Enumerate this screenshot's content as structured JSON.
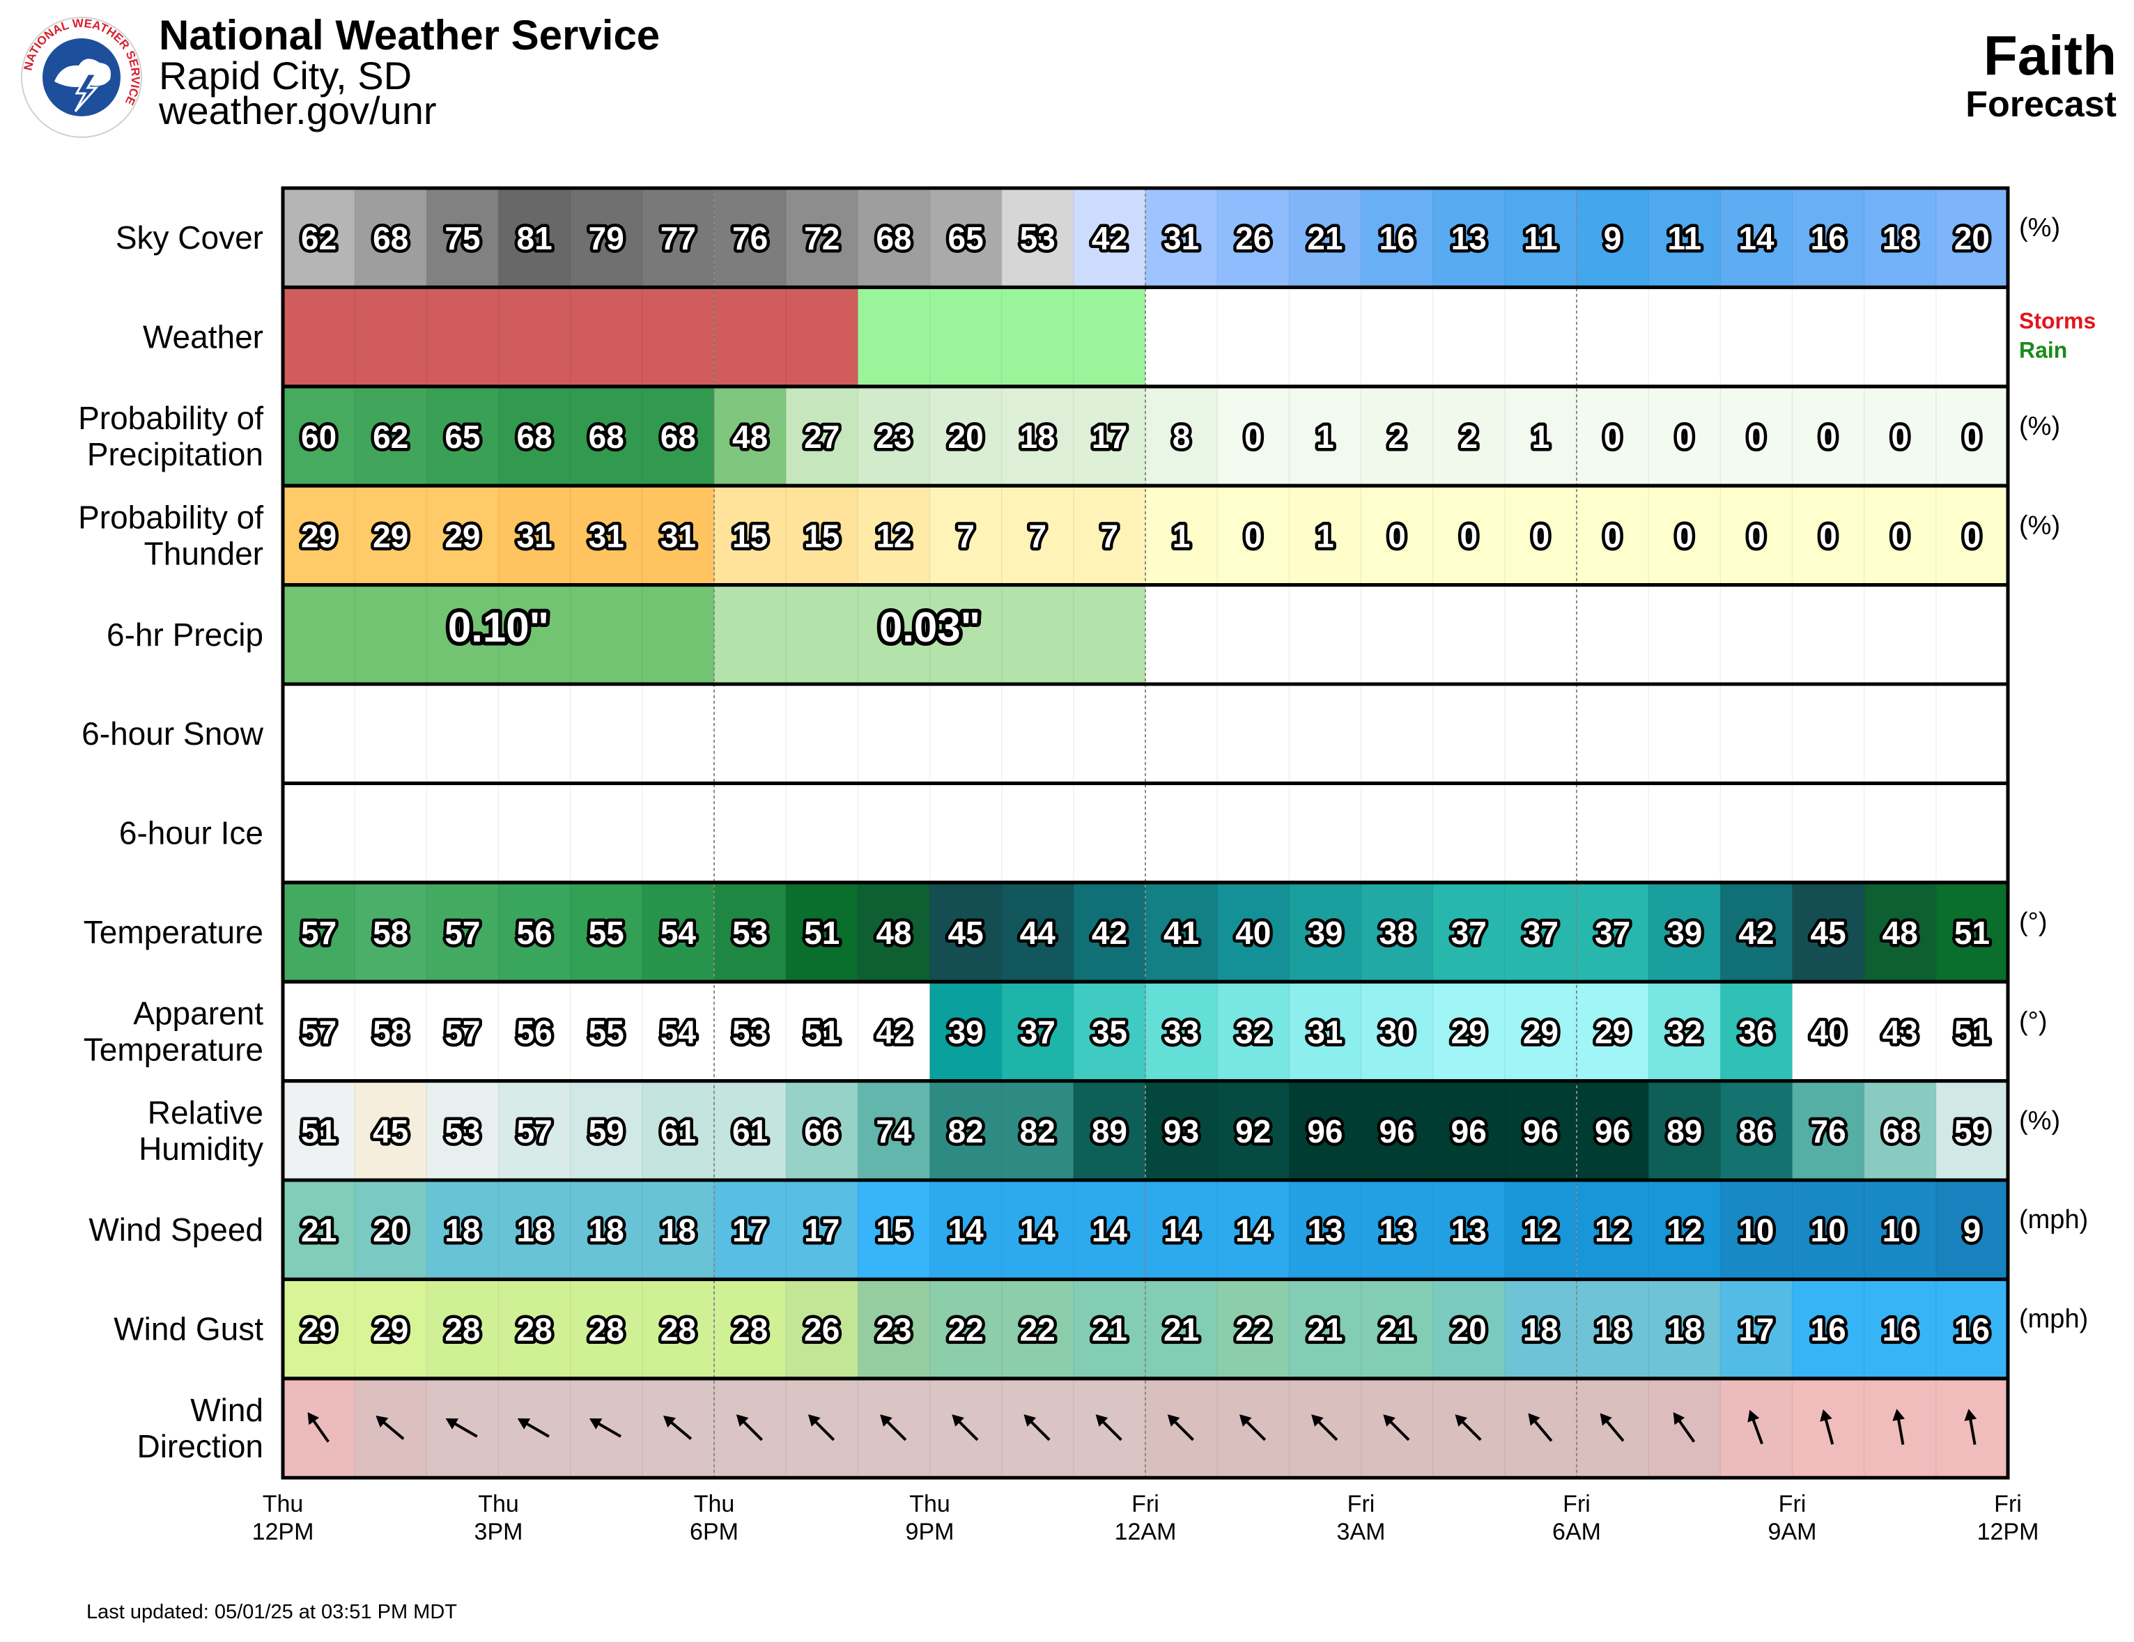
{
  "header": {
    "agency": "National Weather Service",
    "office": "Rapid City, SD",
    "url": "weather.gov/unr",
    "logo_text": "NATIONAL WEATHER SERVICE",
    "location": "Faith",
    "subtitle": "Forecast"
  },
  "footer": {
    "updated": "Last updated: 05/01/25 at 03:51 PM MDT"
  },
  "chart_data": {
    "type": "table",
    "x_ticks": [
      [
        "Thu",
        "12PM"
      ],
      [
        "Thu",
        "3PM"
      ],
      [
        "Thu",
        "6PM"
      ],
      [
        "Thu",
        "9PM"
      ],
      [
        "Fri",
        "12AM"
      ],
      [
        "Fri",
        "3AM"
      ],
      [
        "Fri",
        "6AM"
      ],
      [
        "Fri",
        "9AM"
      ],
      [
        "Fri",
        "12PM"
      ]
    ],
    "weather_legend": [
      {
        "label": "Storms",
        "color": "#e3141c"
      },
      {
        "label": "Rain",
        "color": "#1a8a1a"
      }
    ],
    "rows": [
      {
        "key": "sky",
        "label": [
          "Sky Cover"
        ],
        "unit": "(%)",
        "values": [
          62,
          68,
          75,
          81,
          79,
          77,
          76,
          72,
          68,
          65,
          53,
          42,
          31,
          26,
          21,
          16,
          13,
          11,
          9,
          11,
          14,
          16,
          18,
          20
        ]
      },
      {
        "key": "weather",
        "label": [
          "Weather"
        ],
        "unit": "",
        "values": [
          "storms",
          "storms",
          "storms",
          "storms",
          "storms",
          "storms",
          "storms",
          "storms",
          "rain",
          "rain",
          "rain",
          "rain",
          "",
          "",
          "",
          "",
          "",
          "",
          "",
          "",
          "",
          "",
          "",
          ""
        ]
      },
      {
        "key": "pop",
        "label": [
          "Probability of",
          "Precipitation"
        ],
        "unit": "(%)",
        "values": [
          60,
          62,
          65,
          68,
          68,
          68,
          48,
          27,
          23,
          20,
          18,
          17,
          8,
          0,
          1,
          2,
          2,
          1,
          0,
          0,
          0,
          0,
          0,
          0
        ]
      },
      {
        "key": "thunder",
        "label": [
          "Probability of",
          "Thunder"
        ],
        "unit": "(%)",
        "values": [
          29,
          29,
          29,
          31,
          31,
          31,
          15,
          15,
          12,
          7,
          7,
          7,
          1,
          0,
          1,
          0,
          0,
          0,
          0,
          0,
          0,
          0,
          0,
          0
        ]
      },
      {
        "key": "qpf",
        "label": [
          "6-hr Precip"
        ],
        "unit": "",
        "blocks": [
          {
            "start": 0,
            "span": 6,
            "text": "0.10\""
          },
          {
            "start": 6,
            "span": 6,
            "text": "0.03\""
          }
        ]
      },
      {
        "key": "snow",
        "label": [
          "6-hour Snow"
        ],
        "unit": "",
        "blocks": []
      },
      {
        "key": "ice",
        "label": [
          "6-hour Ice"
        ],
        "unit": "",
        "blocks": []
      },
      {
        "key": "temp",
        "label": [
          "Temperature"
        ],
        "unit": "(°)",
        "values": [
          57,
          58,
          57,
          56,
          55,
          54,
          53,
          51,
          48,
          45,
          44,
          42,
          41,
          40,
          39,
          38,
          37,
          37,
          37,
          39,
          42,
          45,
          48,
          51
        ]
      },
      {
        "key": "apparent",
        "label": [
          "Apparent",
          "Temperature"
        ],
        "unit": "(°)",
        "values": [
          57,
          58,
          57,
          56,
          55,
          54,
          53,
          51,
          42,
          39,
          37,
          35,
          33,
          32,
          31,
          30,
          29,
          29,
          29,
          32,
          36,
          40,
          43,
          51
        ]
      },
      {
        "key": "rh",
        "label": [
          "Relative",
          "Humidity"
        ],
        "unit": "(%)",
        "values": [
          51,
          45,
          53,
          57,
          59,
          61,
          61,
          66,
          74,
          82,
          82,
          89,
          93,
          92,
          96,
          96,
          96,
          96,
          96,
          89,
          86,
          76,
          68,
          59
        ]
      },
      {
        "key": "wspd",
        "label": [
          "Wind Speed"
        ],
        "unit": "(mph)",
        "values": [
          21,
          20,
          18,
          18,
          18,
          18,
          17,
          17,
          15,
          14,
          14,
          14,
          14,
          14,
          13,
          13,
          13,
          12,
          12,
          12,
          10,
          10,
          10,
          9
        ]
      },
      {
        "key": "gust",
        "label": [
          "Wind Gust"
        ],
        "unit": "(mph)",
        "values": [
          29,
          29,
          28,
          28,
          28,
          28,
          28,
          26,
          23,
          22,
          22,
          21,
          21,
          22,
          21,
          21,
          20,
          18,
          18,
          18,
          17,
          16,
          16,
          16
        ]
      },
      {
        "key": "wdir",
        "label": [
          "Wind",
          "Direction"
        ],
        "unit": "",
        "values_deg": [
          325,
          310,
          300,
          300,
          300,
          310,
          315,
          315,
          315,
          315,
          315,
          315,
          315,
          315,
          315,
          315,
          315,
          320,
          320,
          325,
          340,
          345,
          350,
          350
        ]
      }
    ]
  }
}
